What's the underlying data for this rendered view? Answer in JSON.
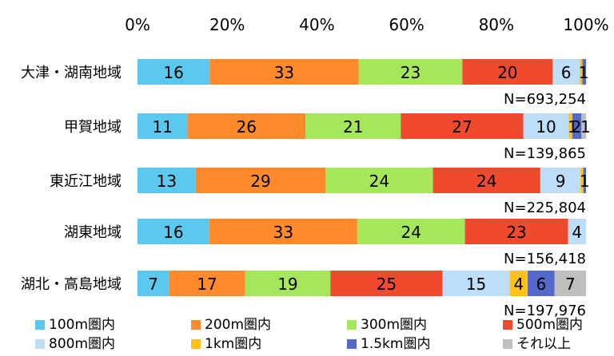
{
  "chart_data": {
    "type": "bar",
    "orientation": "horizontal",
    "stacked": "percent",
    "title": "",
    "xlabel": "",
    "ylabel": "",
    "xlim": [
      0,
      100
    ],
    "x_tick_labels": [
      "0%",
      "20%",
      "40%",
      "60%",
      "80%",
      "100%"
    ],
    "categories": [
      "大津・湖南地域",
      "甲賀地域",
      "東近江地域",
      "湖東地域",
      "湖北・高島地域"
    ],
    "n_labels": [
      "N=693,254",
      "N=139,865",
      "N=225,804",
      "N=156,418",
      "N=197,976"
    ],
    "series": [
      {
        "name": "100m圏内",
        "color": "#5BC8EE",
        "values": [
          16,
          11,
          13,
          16,
          7
        ],
        "labels": [
          "16",
          "11",
          "13",
          "16",
          "7"
        ]
      },
      {
        "name": "200m圏内",
        "color": "#FF8A2B",
        "values": [
          33,
          26,
          29,
          33,
          17
        ],
        "labels": [
          "33",
          "26",
          "29",
          "33",
          "17"
        ]
      },
      {
        "name": "300m圏内",
        "color": "#A6E65A",
        "values": [
          23,
          21,
          24,
          24,
          19
        ],
        "labels": [
          "23",
          "21",
          "24",
          "24",
          "19"
        ]
      },
      {
        "name": "500m圏内",
        "color": "#F04A2E",
        "values": [
          20,
          27,
          24,
          23,
          25
        ],
        "labels": [
          "20",
          "27",
          "24",
          "23",
          "25"
        ]
      },
      {
        "name": "800m圏内",
        "color": "#BEDDF6",
        "values": [
          6,
          10,
          9,
          4,
          15
        ],
        "labels": [
          "6",
          "10",
          "9",
          "4",
          "15"
        ]
      },
      {
        "name": "1km圏内",
        "color": "#FFC21A",
        "values": [
          0.6,
          0.8,
          0.6,
          0,
          4
        ],
        "labels": [
          "1",
          "1",
          "1",
          "",
          "4"
        ]
      },
      {
        "name": "1.5km圏内",
        "color": "#5468C8",
        "values": [
          0.8,
          2,
          0.6,
          0,
          6
        ],
        "labels": [
          "",
          "2",
          "",
          "",
          "6"
        ]
      },
      {
        "name": "それ以上",
        "color": "#BFBFBF",
        "values": [
          0,
          1,
          0,
          0,
          7
        ],
        "labels": [
          "",
          "1",
          "",
          "",
          "7"
        ]
      }
    ],
    "legend_position": "bottom",
    "grid": false
  }
}
